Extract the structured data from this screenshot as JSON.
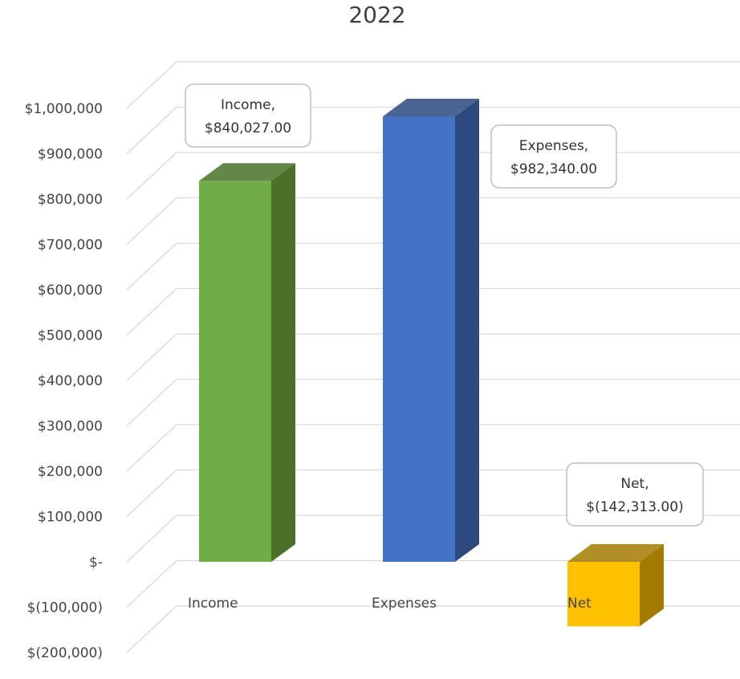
{
  "chart_data": {
    "type": "bar",
    "style": "3d-column",
    "title": "2022",
    "xlabel": "",
    "ylabel": "",
    "ylim": [
      -200000,
      1000000
    ],
    "y_ticks": [
      1000000,
      900000,
      800000,
      700000,
      600000,
      500000,
      400000,
      300000,
      200000,
      100000,
      0,
      -100000,
      -200000
    ],
    "y_tick_labels": [
      "$1,000,000",
      "$900,000",
      "$800,000",
      "$700,000",
      "$600,000",
      "$500,000",
      "$400,000",
      "$300,000",
      "$200,000",
      "$100,000",
      "$-",
      "$(100,000)",
      "$(200,000)"
    ],
    "categories": [
      "Income",
      "Expenses",
      "Net"
    ],
    "values": [
      840027.0,
      982340.0,
      -142313.0
    ],
    "colors": [
      "#70ad47",
      "#4472c4",
      "#ffc000"
    ],
    "side_colors": [
      "#4a7129",
      "#2c4a80",
      "#a37b00"
    ],
    "data_labels": [
      {
        "line1": "Income,",
        "line2": "$840,027.00"
      },
      {
        "line1": "Expenses,",
        "line2": "$982,340.00"
      },
      {
        "line1": "Net,",
        "line2": "$(142,313.00)"
      }
    ],
    "grid": true,
    "legend": "none"
  }
}
